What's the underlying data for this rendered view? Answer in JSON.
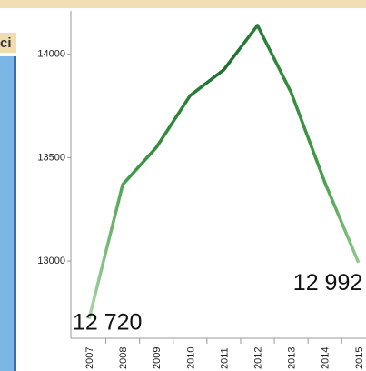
{
  "panel_label": "ci",
  "chart_data": {
    "type": "line",
    "categories": [
      "2007",
      "2008",
      "2009",
      "2010",
      "2011",
      "2012",
      "2013",
      "2014",
      "2015"
    ],
    "values": [
      12720,
      13370,
      13550,
      13800,
      13925,
      14140,
      13815,
      13380,
      12992
    ],
    "value_labels": [
      "12 720",
      null,
      null,
      null,
      null,
      null,
      null,
      null,
      "12 992"
    ],
    "color": "#2e7d32",
    "ylim": [
      12635,
      14210
    ],
    "yticks": [
      13000,
      13500,
      14000
    ]
  }
}
